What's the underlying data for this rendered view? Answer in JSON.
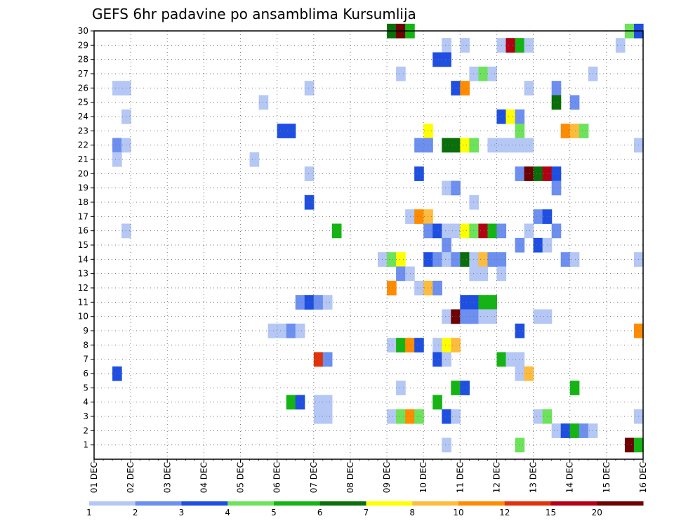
{
  "chart_data": {
    "type": "heatmap",
    "title": "GEFS 6hr padavine po ansamblima Kursumlija",
    "xlabel": "",
    "ylabel": "",
    "x_tick_labels": [
      "01 DEC",
      "02 DEC",
      "03 DEC",
      "04 DEC",
      "05 DEC",
      "06 DEC",
      "07 DEC",
      "08 DEC",
      "09 DEC",
      "10 DEC",
      "11 DEC",
      "12 DEC",
      "13 DEC",
      "14 DEC",
      "15 DEC",
      "16 DEC"
    ],
    "y_tick_labels": [
      "1",
      "2",
      "3",
      "4",
      "5",
      "6",
      "7",
      "8",
      "9",
      "10",
      "11",
      "12",
      "13",
      "14",
      "15",
      "16",
      "17",
      "18",
      "19",
      "20",
      "21",
      "22",
      "23",
      "24",
      "25",
      "26",
      "27",
      "28",
      "29",
      "30"
    ],
    "y_range": [
      0,
      30
    ],
    "grid": true,
    "time_step_hours": 6,
    "colorbar": {
      "labels": [
        "1",
        "2",
        "3",
        "4",
        "5",
        "6",
        "7",
        "8",
        "10",
        "12",
        "15",
        "20"
      ],
      "colors": [
        "#b4c7f5",
        "#6c8ff0",
        "#1e4fe0",
        "#6ce35a",
        "#14b414",
        "#0a6e0a",
        "#ffff00",
        "#ffbc3c",
        "#ff8c00",
        "#e1320a",
        "#b40014",
        "#6e0000"
      ]
    },
    "cells": [
      {
        "m": 30,
        "x": "09 DEC 00",
        "v": 6
      },
      {
        "m": 30,
        "x": "09 DEC 06",
        "v": 20
      },
      {
        "m": 30,
        "x": "09 DEC 12",
        "v": 5
      },
      {
        "m": 30,
        "x": "15 DEC 12",
        "v": 4
      },
      {
        "m": 30,
        "x": "15 DEC 18",
        "v": 3
      },
      {
        "m": 29,
        "x": "10 DEC 12",
        "v": 1
      },
      {
        "m": 29,
        "x": "11 DEC 00",
        "v": 1
      },
      {
        "m": 29,
        "x": "12 DEC 00",
        "v": 1
      },
      {
        "m": 29,
        "x": "12 DEC 06",
        "v": 15
      },
      {
        "m": 29,
        "x": "12 DEC 12",
        "v": 5
      },
      {
        "m": 29,
        "x": "12 DEC 18",
        "v": 1
      },
      {
        "m": 29,
        "x": "15 DEC 06",
        "v": 1
      },
      {
        "m": 28,
        "x": "10 DEC 06",
        "v": 3
      },
      {
        "m": 28,
        "x": "10 DEC 12",
        "v": 3
      },
      {
        "m": 27,
        "x": "09 DEC 06",
        "v": 1
      },
      {
        "m": 27,
        "x": "11 DEC 06",
        "v": 1
      },
      {
        "m": 27,
        "x": "11 DEC 12",
        "v": 4
      },
      {
        "m": 27,
        "x": "11 DEC 18",
        "v": 1
      },
      {
        "m": 27,
        "x": "14 DEC 12",
        "v": 1
      },
      {
        "m": 26,
        "x": "01 DEC 12",
        "v": 1
      },
      {
        "m": 26,
        "x": "01 DEC 18",
        "v": 1
      },
      {
        "m": 26,
        "x": "06 DEC 18",
        "v": 1
      },
      {
        "m": 26,
        "x": "10 DEC 18",
        "v": 3
      },
      {
        "m": 26,
        "x": "11 DEC 00",
        "v": 10
      },
      {
        "m": 26,
        "x": "12 DEC 18",
        "v": 1
      },
      {
        "m": 26,
        "x": "13 DEC 12",
        "v": 2
      },
      {
        "m": 25,
        "x": "05 DEC 12",
        "v": 1
      },
      {
        "m": 25,
        "x": "13 DEC 12",
        "v": 6
      },
      {
        "m": 25,
        "x": "14 DEC 00",
        "v": 2
      },
      {
        "m": 24,
        "x": "01 DEC 18",
        "v": 1
      },
      {
        "m": 24,
        "x": "12 DEC 00",
        "v": 3
      },
      {
        "m": 24,
        "x": "12 DEC 06",
        "v": 7
      },
      {
        "m": 24,
        "x": "12 DEC 12",
        "v": 2
      },
      {
        "m": 23,
        "x": "06 DEC 00",
        "v": 3
      },
      {
        "m": 23,
        "x": "06 DEC 06",
        "v": 3
      },
      {
        "m": 23,
        "x": "10 DEC 00",
        "v": 7
      },
      {
        "m": 23,
        "x": "12 DEC 12",
        "v": 4
      },
      {
        "m": 23,
        "x": "13 DEC 18",
        "v": 10
      },
      {
        "m": 23,
        "x": "14 DEC 00",
        "v": 8
      },
      {
        "m": 23,
        "x": "14 DEC 06",
        "v": 4
      },
      {
        "m": 22,
        "x": "01 DEC 12",
        "v": 2
      },
      {
        "m": 22,
        "x": "01 DEC 18",
        "v": 1
      },
      {
        "m": 22,
        "x": "09 DEC 18",
        "v": 2
      },
      {
        "m": 22,
        "x": "10 DEC 00",
        "v": 2
      },
      {
        "m": 22,
        "x": "10 DEC 12",
        "v": 6
      },
      {
        "m": 22,
        "x": "10 DEC 18",
        "v": 6
      },
      {
        "m": 22,
        "x": "11 DEC 00",
        "v": 7
      },
      {
        "m": 22,
        "x": "11 DEC 06",
        "v": 4
      },
      {
        "m": 22,
        "x": "11 DEC 18",
        "v": 1
      },
      {
        "m": 22,
        "x": "12 DEC 00",
        "v": 1
      },
      {
        "m": 22,
        "x": "12 DEC 06",
        "v": 1
      },
      {
        "m": 22,
        "x": "12 DEC 12",
        "v": 1
      },
      {
        "m": 22,
        "x": "12 DEC 18",
        "v": 1
      },
      {
        "m": 22,
        "x": "15 DEC 18",
        "v": 1
      },
      {
        "m": 21,
        "x": "01 DEC 12",
        "v": 1
      },
      {
        "m": 21,
        "x": "05 DEC 06",
        "v": 1
      },
      {
        "m": 20,
        "x": "06 DEC 18",
        "v": 1
      },
      {
        "m": 20,
        "x": "09 DEC 18",
        "v": 3
      },
      {
        "m": 20,
        "x": "12 DEC 12",
        "v": 2
      },
      {
        "m": 20,
        "x": "12 DEC 18",
        "v": 20
      },
      {
        "m": 20,
        "x": "13 DEC 00",
        "v": 6
      },
      {
        "m": 20,
        "x": "13 DEC 06",
        "v": 15
      },
      {
        "m": 20,
        "x": "13 DEC 12",
        "v": 3
      },
      {
        "m": 19,
        "x": "10 DEC 12",
        "v": 1
      },
      {
        "m": 19,
        "x": "10 DEC 18",
        "v": 2
      },
      {
        "m": 19,
        "x": "13 DEC 12",
        "v": 2
      },
      {
        "m": 18,
        "x": "06 DEC 18",
        "v": 3
      },
      {
        "m": 18,
        "x": "11 DEC 06",
        "v": 1
      },
      {
        "m": 17,
        "x": "09 DEC 12",
        "v": 1
      },
      {
        "m": 17,
        "x": "09 DEC 18",
        "v": 10
      },
      {
        "m": 17,
        "x": "10 DEC 00",
        "v": 8
      },
      {
        "m": 17,
        "x": "13 DEC 00",
        "v": 2
      },
      {
        "m": 17,
        "x": "13 DEC 06",
        "v": 3
      },
      {
        "m": 16,
        "x": "01 DEC 18",
        "v": 1
      },
      {
        "m": 16,
        "x": "07 DEC 12",
        "v": 5
      },
      {
        "m": 16,
        "x": "10 DEC 00",
        "v": 2
      },
      {
        "m": 16,
        "x": "10 DEC 06",
        "v": 3
      },
      {
        "m": 16,
        "x": "10 DEC 12",
        "v": 1
      },
      {
        "m": 16,
        "x": "10 DEC 18",
        "v": 1
      },
      {
        "m": 16,
        "x": "11 DEC 00",
        "v": 7
      },
      {
        "m": 16,
        "x": "11 DEC 06",
        "v": 4
      },
      {
        "m": 16,
        "x": "11 DEC 12",
        "v": 15
      },
      {
        "m": 16,
        "x": "11 DEC 18",
        "v": 5
      },
      {
        "m": 16,
        "x": "12 DEC 00",
        "v": 2
      },
      {
        "m": 16,
        "x": "12 DEC 18",
        "v": 1
      },
      {
        "m": 16,
        "x": "13 DEC 12",
        "v": 2
      },
      {
        "m": 15,
        "x": "10 DEC 12",
        "v": 2
      },
      {
        "m": 15,
        "x": "12 DEC 12",
        "v": 2
      },
      {
        "m": 15,
        "x": "13 DEC 00",
        "v": 3
      },
      {
        "m": 15,
        "x": "13 DEC 06",
        "v": 1
      },
      {
        "m": 14,
        "x": "08 DEC 18",
        "v": 1
      },
      {
        "m": 14,
        "x": "09 DEC 00",
        "v": 4
      },
      {
        "m": 14,
        "x": "09 DEC 06",
        "v": 7
      },
      {
        "m": 14,
        "x": "10 DEC 00",
        "v": 3
      },
      {
        "m": 14,
        "x": "10 DEC 06",
        "v": 2
      },
      {
        "m": 14,
        "x": "10 DEC 12",
        "v": 1
      },
      {
        "m": 14,
        "x": "10 DEC 18",
        "v": 2
      },
      {
        "m": 14,
        "x": "11 DEC 00",
        "v": 6
      },
      {
        "m": 14,
        "x": "11 DEC 06",
        "v": 1
      },
      {
        "m": 14,
        "x": "11 DEC 12",
        "v": 8
      },
      {
        "m": 14,
        "x": "11 DEC 18",
        "v": 2
      },
      {
        "m": 14,
        "x": "12 DEC 00",
        "v": 2
      },
      {
        "m": 14,
        "x": "13 DEC 18",
        "v": 2
      },
      {
        "m": 14,
        "x": "14 DEC 00",
        "v": 1
      },
      {
        "m": 14,
        "x": "15 DEC 18",
        "v": 1
      },
      {
        "m": 13,
        "x": "09 DEC 06",
        "v": 2
      },
      {
        "m": 13,
        "x": "09 DEC 12",
        "v": 1
      },
      {
        "m": 13,
        "x": "11 DEC 06",
        "v": 1
      },
      {
        "m": 13,
        "x": "11 DEC 12",
        "v": 1
      },
      {
        "m": 13,
        "x": "12 DEC 00",
        "v": 1
      },
      {
        "m": 12,
        "x": "09 DEC 00",
        "v": 10
      },
      {
        "m": 12,
        "x": "09 DEC 18",
        "v": 1
      },
      {
        "m": 12,
        "x": "10 DEC 00",
        "v": 8
      },
      {
        "m": 12,
        "x": "10 DEC 06",
        "v": 2
      },
      {
        "m": 11,
        "x": "06 DEC 12",
        "v": 2
      },
      {
        "m": 11,
        "x": "06 DEC 18",
        "v": 3
      },
      {
        "m": 11,
        "x": "07 DEC 00",
        "v": 2
      },
      {
        "m": 11,
        "x": "07 DEC 06",
        "v": 1
      },
      {
        "m": 11,
        "x": "11 DEC 00",
        "v": 3
      },
      {
        "m": 11,
        "x": "11 DEC 06",
        "v": 3
      },
      {
        "m": 11,
        "x": "11 DEC 12",
        "v": 5
      },
      {
        "m": 11,
        "x": "11 DEC 18",
        "v": 5
      },
      {
        "m": 10,
        "x": "10 DEC 12",
        "v": 1
      },
      {
        "m": 10,
        "x": "10 DEC 18",
        "v": 20
      },
      {
        "m": 10,
        "x": "11 DEC 00",
        "v": 2
      },
      {
        "m": 10,
        "x": "11 DEC 06",
        "v": 2
      },
      {
        "m": 10,
        "x": "11 DEC 12",
        "v": 1
      },
      {
        "m": 10,
        "x": "11 DEC 18",
        "v": 1
      },
      {
        "m": 10,
        "x": "13 DEC 00",
        "v": 1
      },
      {
        "m": 10,
        "x": "13 DEC 06",
        "v": 1
      },
      {
        "m": 9,
        "x": "05 DEC 18",
        "v": 1
      },
      {
        "m": 9,
        "x": "06 DEC 00",
        "v": 1
      },
      {
        "m": 9,
        "x": "06 DEC 06",
        "v": 2
      },
      {
        "m": 9,
        "x": "06 DEC 12",
        "v": 1
      },
      {
        "m": 9,
        "x": "12 DEC 12",
        "v": 3
      },
      {
        "m": 9,
        "x": "15 DEC 18",
        "v": 10
      },
      {
        "m": 8,
        "x": "09 DEC 00",
        "v": 1
      },
      {
        "m": 8,
        "x": "09 DEC 06",
        "v": 5
      },
      {
        "m": 8,
        "x": "09 DEC 12",
        "v": 10
      },
      {
        "m": 8,
        "x": "09 DEC 18",
        "v": 3
      },
      {
        "m": 8,
        "x": "10 DEC 06",
        "v": 1
      },
      {
        "m": 8,
        "x": "10 DEC 12",
        "v": 7
      },
      {
        "m": 8,
        "x": "10 DEC 18",
        "v": 8
      },
      {
        "m": 7,
        "x": "07 DEC 00",
        "v": 12
      },
      {
        "m": 7,
        "x": "07 DEC 06",
        "v": 2
      },
      {
        "m": 7,
        "x": "10 DEC 06",
        "v": 3
      },
      {
        "m": 7,
        "x": "10 DEC 12",
        "v": 1
      },
      {
        "m": 7,
        "x": "12 DEC 00",
        "v": 5
      },
      {
        "m": 7,
        "x": "12 DEC 06",
        "v": 1
      },
      {
        "m": 7,
        "x": "12 DEC 12",
        "v": 1
      },
      {
        "m": 6,
        "x": "01 DEC 12",
        "v": 3
      },
      {
        "m": 6,
        "x": "12 DEC 12",
        "v": 1
      },
      {
        "m": 6,
        "x": "12 DEC 18",
        "v": 8
      },
      {
        "m": 5,
        "x": "09 DEC 06",
        "v": 1
      },
      {
        "m": 5,
        "x": "10 DEC 18",
        "v": 5
      },
      {
        "m": 5,
        "x": "11 DEC 00",
        "v": 3
      },
      {
        "m": 5,
        "x": "14 DEC 00",
        "v": 5
      },
      {
        "m": 4,
        "x": "06 DEC 06",
        "v": 5
      },
      {
        "m": 4,
        "x": "06 DEC 12",
        "v": 3
      },
      {
        "m": 4,
        "x": "07 DEC 00",
        "v": 1
      },
      {
        "m": 4,
        "x": "07 DEC 06",
        "v": 1
      },
      {
        "m": 4,
        "x": "10 DEC 06",
        "v": 5
      },
      {
        "m": 3,
        "x": "07 DEC 00",
        "v": 1
      },
      {
        "m": 3,
        "x": "07 DEC 06",
        "v": 1
      },
      {
        "m": 3,
        "x": "09 DEC 00",
        "v": 1
      },
      {
        "m": 3,
        "x": "09 DEC 06",
        "v": 4
      },
      {
        "m": 3,
        "x": "09 DEC 12",
        "v": 10
      },
      {
        "m": 3,
        "x": "09 DEC 18",
        "v": 4
      },
      {
        "m": 3,
        "x": "10 DEC 12",
        "v": 3
      },
      {
        "m": 3,
        "x": "10 DEC 18",
        "v": 1
      },
      {
        "m": 3,
        "x": "13 DEC 00",
        "v": 1
      },
      {
        "m": 3,
        "x": "13 DEC 06",
        "v": 4
      },
      {
        "m": 3,
        "x": "15 DEC 18",
        "v": 1
      },
      {
        "m": 2,
        "x": "13 DEC 12",
        "v": 1
      },
      {
        "m": 2,
        "x": "13 DEC 18",
        "v": 3
      },
      {
        "m": 2,
        "x": "14 DEC 00",
        "v": 5
      },
      {
        "m": 2,
        "x": "14 DEC 06",
        "v": 2
      },
      {
        "m": 2,
        "x": "14 DEC 12",
        "v": 1
      },
      {
        "m": 1,
        "x": "10 DEC 12",
        "v": 1
      },
      {
        "m": 1,
        "x": "12 DEC 12",
        "v": 4
      },
      {
        "m": 1,
        "x": "15 DEC 12",
        "v": 20
      },
      {
        "m": 1,
        "x": "15 DEC 18",
        "v": 5
      }
    ]
  }
}
